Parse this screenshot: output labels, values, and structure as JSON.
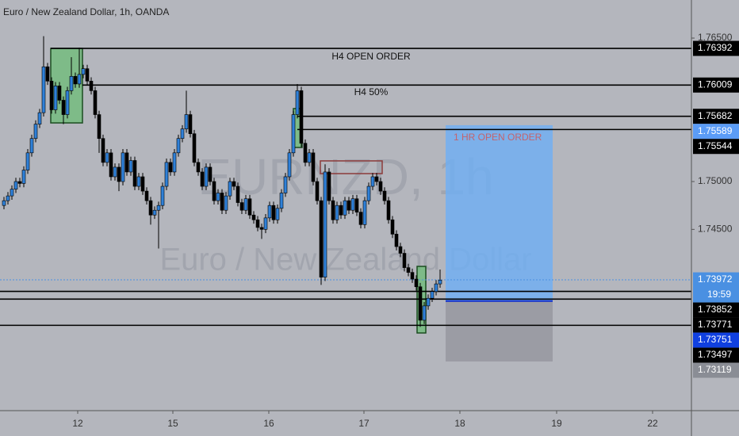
{
  "chart_data": {
    "type": "candlestick",
    "title": "Euro / New Zealand Dollar, 1h, OANDA",
    "watermark": [
      "EURNZD, 1h",
      "Euro / New Zealand Dollar"
    ],
    "up_color": "#2f80d8",
    "down_color": "#000000",
    "open": [
      1.7475,
      1.748,
      1.7485,
      1.7492,
      1.75,
      1.7498,
      1.7512,
      1.753,
      1.7545,
      1.756,
      1.7572,
      1.762,
      1.7605,
      1.7575,
      1.76,
      1.7585,
      1.757,
      1.7595,
      1.761,
      1.7602,
      1.7612,
      1.7618,
      1.7605,
      1.7595,
      1.757,
      1.7545,
      1.752,
      1.753,
      1.7505,
      1.7515,
      1.75,
      1.753,
      1.751,
      1.7522,
      1.7495,
      1.7505,
      1.749,
      1.748,
      1.7465,
      1.747,
      1.7475,
      1.7495,
      1.752,
      1.751,
      1.753,
      1.7545,
      1.7555,
      1.757,
      1.755,
      1.752,
      1.751,
      1.7495,
      1.7515,
      1.75,
      1.748,
      1.7488,
      1.747,
      1.7485,
      1.75,
      1.7495,
      1.7478,
      1.747,
      1.7482,
      1.7465,
      1.746,
      1.7452,
      1.745,
      1.7462,
      1.7475,
      1.746,
      1.7472,
      1.7488,
      1.7505,
      1.753,
      1.757,
      1.7595,
      1.754,
      1.752,
      1.753,
      1.75,
      1.748,
      1.74,
      1.751,
      1.748,
      1.746,
      1.7475,
      1.7465,
      1.748,
      1.747,
      1.7482,
      1.7468,
      1.7455,
      1.748,
      1.7495,
      1.7505,
      1.75,
      1.749,
      1.748,
      1.746,
      1.7445,
      1.7432,
      1.7425,
      1.741,
      1.7405,
      1.7398,
      1.739,
      1.7355,
      1.737,
      1.7378,
      1.7385,
      1.7393
    ],
    "high": [
      1.7484,
      1.7489,
      1.7496,
      1.7504,
      1.7504,
      1.7516,
      1.7534,
      1.7549,
      1.7564,
      1.7576,
      1.7652,
      1.7624,
      1.7609,
      1.7604,
      1.7604,
      1.7589,
      1.7599,
      1.763,
      1.7614,
      1.764,
      1.7622,
      1.7622,
      1.7609,
      1.7599,
      1.7574,
      1.7549,
      1.7534,
      1.7534,
      1.7519,
      1.7519,
      1.7534,
      1.7534,
      1.7526,
      1.7526,
      1.7509,
      1.7509,
      1.7494,
      1.7484,
      1.7474,
      1.7479,
      1.7499,
      1.7524,
      1.7524,
      1.7534,
      1.7549,
      1.7559,
      1.7595,
      1.7574,
      1.7554,
      1.7524,
      1.7514,
      1.7519,
      1.7519,
      1.7504,
      1.7492,
      1.7492,
      1.7489,
      1.7504,
      1.7504,
      1.7499,
      1.7482,
      1.7486,
      1.7486,
      1.7469,
      1.7464,
      1.7456,
      1.7466,
      1.7479,
      1.7479,
      1.7476,
      1.7492,
      1.7509,
      1.7534,
      1.7574,
      1.7602,
      1.7599,
      1.7544,
      1.7534,
      1.7534,
      1.7504,
      1.7484,
      1.7518,
      1.7514,
      1.7484,
      1.7479,
      1.7479,
      1.7484,
      1.7484,
      1.7486,
      1.7486,
      1.7472,
      1.7484,
      1.7499,
      1.7509,
      1.7509,
      1.7504,
      1.7494,
      1.7484,
      1.7464,
      1.7449,
      1.7436,
      1.7429,
      1.7414,
      1.7409,
      1.7402,
      1.7394,
      1.7374,
      1.7382,
      1.7389,
      1.7397,
      1.7408
    ],
    "low": [
      1.7471,
      1.7476,
      1.7481,
      1.7488,
      1.7494,
      1.7494,
      1.7508,
      1.7526,
      1.7541,
      1.7556,
      1.7568,
      1.7601,
      1.7571,
      1.7571,
      1.7581,
      1.756,
      1.7566,
      1.7591,
      1.7598,
      1.7598,
      1.7608,
      1.7601,
      1.7591,
      1.7566,
      1.753,
      1.7516,
      1.7516,
      1.7501,
      1.7501,
      1.749,
      1.7496,
      1.7506,
      1.7506,
      1.7491,
      1.7491,
      1.7486,
      1.7476,
      1.7455,
      1.7461,
      1.743,
      1.7471,
      1.7491,
      1.7506,
      1.7506,
      1.7526,
      1.7541,
      1.7551,
      1.7546,
      1.7516,
      1.7506,
      1.7491,
      1.7491,
      1.7496,
      1.7476,
      1.7476,
      1.7466,
      1.7466,
      1.7481,
      1.7491,
      1.7474,
      1.7466,
      1.7466,
      1.7461,
      1.7456,
      1.7448,
      1.744,
      1.7446,
      1.7458,
      1.7456,
      1.7456,
      1.7468,
      1.7484,
      1.7501,
      1.7526,
      1.7566,
      1.7536,
      1.7516,
      1.7516,
      1.7496,
      1.7476,
      1.7392,
      1.7396,
      1.7476,
      1.7456,
      1.7456,
      1.7461,
      1.7461,
      1.7466,
      1.7466,
      1.7464,
      1.7451,
      1.7451,
      1.7476,
      1.7491,
      1.7496,
      1.7486,
      1.7476,
      1.7456,
      1.7441,
      1.7428,
      1.7421,
      1.7406,
      1.7401,
      1.7394,
      1.7386,
      1.7348,
      1.7351,
      1.7366,
      1.7374,
      1.7381,
      1.7389
    ],
    "close": [
      1.748,
      1.7485,
      1.7492,
      1.75,
      1.7498,
      1.7512,
      1.753,
      1.7545,
      1.756,
      1.7572,
      1.762,
      1.7605,
      1.7575,
      1.76,
      1.7585,
      1.757,
      1.7595,
      1.761,
      1.7602,
      1.7612,
      1.7618,
      1.7605,
      1.7595,
      1.757,
      1.7545,
      1.752,
      1.753,
      1.7505,
      1.7515,
      1.75,
      1.753,
      1.751,
      1.7522,
      1.7495,
      1.7505,
      1.749,
      1.748,
      1.7465,
      1.747,
      1.7475,
      1.7495,
      1.752,
      1.751,
      1.753,
      1.7545,
      1.7555,
      1.757,
      1.755,
      1.752,
      1.751,
      1.7495,
      1.7515,
      1.75,
      1.748,
      1.7488,
      1.747,
      1.7485,
      1.75,
      1.7495,
      1.7478,
      1.747,
      1.7482,
      1.7465,
      1.746,
      1.7452,
      1.745,
      1.7462,
      1.7475,
      1.746,
      1.7472,
      1.7488,
      1.7505,
      1.753,
      1.757,
      1.7595,
      1.754,
      1.752,
      1.753,
      1.75,
      1.748,
      1.74,
      1.751,
      1.748,
      1.746,
      1.7475,
      1.7465,
      1.748,
      1.747,
      1.7482,
      1.7468,
      1.7455,
      1.748,
      1.7495,
      1.7505,
      1.75,
      1.749,
      1.748,
      1.746,
      1.7445,
      1.7432,
      1.7425,
      1.741,
      1.7405,
      1.7398,
      1.739,
      1.7355,
      1.737,
      1.7378,
      1.7385,
      1.7393,
      1.7397
    ],
    "xlim": [
      -1,
      173.4
    ],
    "xticks": [
      {
        "value": 18.6,
        "label": "12"
      },
      {
        "value": 42.6,
        "label": "15"
      },
      {
        "value": 66.8,
        "label": "16"
      },
      {
        "value": 90.8,
        "label": "17"
      },
      {
        "value": 115,
        "label": "18"
      },
      {
        "value": 139.4,
        "label": "19"
      },
      {
        "value": 163.6,
        "label": "22"
      }
    ],
    "ylim": [
      1.72605,
      1.76898
    ],
    "yticks": [
      {
        "value": 1.765,
        "label": "1.76500"
      },
      {
        "value": 1.75,
        "label": "1.75000"
      },
      {
        "value": 1.745,
        "label": "1.74500"
      }
    ],
    "levels": [
      {
        "value": 1.76392,
        "color": "#000000",
        "line": "solid",
        "from": 11.8
      },
      {
        "value": 1.76009,
        "color": "#000000",
        "line": "solid",
        "from": 19.8
      },
      {
        "value": 1.75682,
        "color": "#000000",
        "line": "solid",
        "from": 74
      },
      {
        "value": 1.75589,
        "color": "#5b9cf6",
        "line": "none"
      },
      {
        "value": 1.75544,
        "color": "#000000",
        "line": "solid",
        "from": 74
      },
      {
        "value": 1.73972,
        "color": "#4a90e2",
        "line": "dotted",
        "from": -1,
        "countdown": "19:59"
      },
      {
        "value": 1.73852,
        "color": "#000000",
        "line": "solid",
        "from": -1
      },
      {
        "value": 1.73771,
        "color": "#000000",
        "line": "solid",
        "from": -1
      },
      {
        "value": 1.73751,
        "color": "#1040e0",
        "line": "none"
      },
      {
        "value": 1.73497,
        "color": "#000000",
        "line": "solid",
        "from": -1
      },
      {
        "value": 1.73119,
        "color": "#8a8d95",
        "line": "none"
      }
    ],
    "boxes": [
      {
        "from": 11.8,
        "to": 19.8,
        "top": 1.76392,
        "bottom": 1.75613,
        "fill": "rgba(90,190,100,0.6)",
        "stroke": "#1b4d20"
      },
      {
        "from": 73,
        "to": 75.2,
        "top": 1.75763,
        "bottom": 1.75356,
        "fill": "rgba(90,190,100,0.6)",
        "stroke": "#1b4d20"
      },
      {
        "from": 79.8,
        "to": 95.4,
        "top": 1.75216,
        "bottom": 1.75083,
        "fill": "none",
        "stroke": "#8b3a3a"
      },
      {
        "from": 104.2,
        "to": 106.4,
        "top": 1.74113,
        "bottom": 1.73417,
        "fill": "rgba(90,190,100,0.6)",
        "stroke": "#1b4d20"
      }
    ],
    "position": {
      "from": 111.4,
      "to": 138.4,
      "target": 1.75589,
      "entry": 1.73751,
      "stop": 1.73119,
      "label": "1 HR OPEN ORDER"
    },
    "annotations": [
      "H4 OPEN ORDER",
      "H4 50%"
    ]
  }
}
